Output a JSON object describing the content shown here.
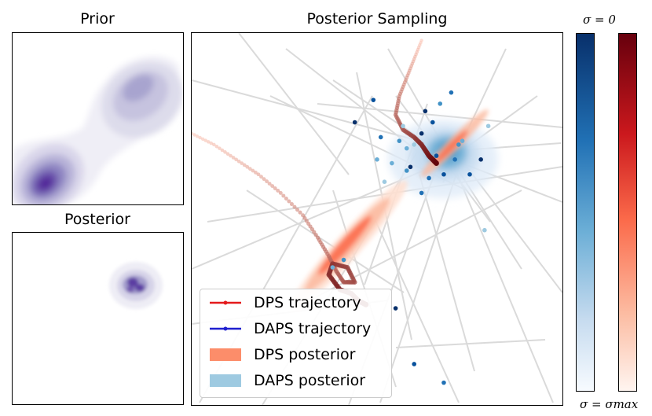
{
  "panels": {
    "prior_title": "Prior",
    "posterior_title": "Posterior",
    "main_title": "Posterior Sampling"
  },
  "colorbars": {
    "top_label": "σ = 0",
    "bottom_label": "σ = σmax",
    "blue_colors": [
      "#08306b",
      "#2171b5",
      "#6baed6",
      "#c6dbef",
      "#f7fbff"
    ],
    "red_colors": [
      "#67000d",
      "#cb181d",
      "#fb6a4a",
      "#fcbba1",
      "#fff5f0"
    ]
  },
  "legend": {
    "items": [
      {
        "label": "DPS trajectory",
        "kind": "line",
        "color": "#e41a1c"
      },
      {
        "label": "DAPS trajectory",
        "kind": "line",
        "color": "#1f1fcf"
      },
      {
        "label": "DPS posterior",
        "kind": "patch",
        "color": "#fc8d6a"
      },
      {
        "label": "DAPS posterior",
        "kind": "patch",
        "color": "#9ecae1"
      }
    ]
  },
  "chart_data": [
    {
      "type": "heatmap",
      "title": "Prior",
      "xlim": [
        0,
        1
      ],
      "ylim": [
        0,
        1
      ],
      "modes": [
        {
          "x": 0.18,
          "y": 0.12,
          "weight": 1.0
        },
        {
          "x": 0.73,
          "y": 0.72,
          "weight": 0.55
        }
      ]
    },
    {
      "type": "heatmap",
      "title": "Posterior",
      "xlim": [
        0,
        1
      ],
      "ylim": [
        0,
        1
      ],
      "modes": [
        {
          "x": 0.71,
          "y": 0.69,
          "weight": 1.0
        }
      ]
    },
    {
      "type": "scatter",
      "title": "Posterior Sampling",
      "xlim": [
        0,
        1
      ],
      "ylim": [
        0,
        1
      ],
      "dps_trajectory_1": [
        [
          0.0,
          0.73
        ],
        [
          0.06,
          0.7
        ],
        [
          0.12,
          0.66
        ],
        [
          0.18,
          0.62
        ],
        [
          0.24,
          0.57
        ],
        [
          0.3,
          0.51
        ],
        [
          0.34,
          0.45
        ],
        [
          0.37,
          0.4
        ],
        [
          0.39,
          0.36
        ],
        [
          0.41,
          0.33
        ],
        [
          0.44,
          0.33
        ],
        [
          0.42,
          0.37
        ],
        [
          0.38,
          0.38
        ],
        [
          0.37,
          0.35
        ],
        [
          0.4,
          0.31
        ],
        [
          0.43,
          0.3
        ],
        [
          0.45,
          0.28
        ],
        [
          0.47,
          0.27
        ]
      ],
      "dps_trajectory_2": [
        [
          0.62,
          0.98
        ],
        [
          0.6,
          0.93
        ],
        [
          0.58,
          0.88
        ],
        [
          0.56,
          0.83
        ],
        [
          0.55,
          0.78
        ],
        [
          0.57,
          0.74
        ],
        [
          0.6,
          0.72
        ],
        [
          0.62,
          0.7
        ],
        [
          0.64,
          0.67
        ],
        [
          0.66,
          0.65
        ]
      ],
      "daps_points": [
        [
          0.44,
          0.76
        ],
        [
          0.49,
          0.82
        ],
        [
          0.51,
          0.72
        ],
        [
          0.56,
          0.71
        ],
        [
          0.58,
          0.69
        ],
        [
          0.6,
          0.7
        ],
        [
          0.62,
          0.73
        ],
        [
          0.65,
          0.76
        ],
        [
          0.7,
          0.84
        ],
        [
          0.72,
          0.7
        ],
        [
          0.73,
          0.71
        ],
        [
          0.8,
          0.75
        ],
        [
          0.78,
          0.66
        ],
        [
          0.68,
          0.62
        ],
        [
          0.64,
          0.61
        ],
        [
          0.58,
          0.63
        ],
        [
          0.54,
          0.65
        ],
        [
          0.52,
          0.6
        ],
        [
          0.59,
          0.64
        ],
        [
          0.66,
          0.67
        ],
        [
          0.71,
          0.66
        ],
        [
          0.67,
          0.81
        ],
        [
          0.5,
          0.66
        ],
        [
          0.57,
          0.75
        ],
        [
          0.63,
          0.79
        ],
        [
          0.75,
          0.62
        ],
        [
          0.62,
          0.57
        ],
        [
          0.41,
          0.39
        ],
        [
          0.38,
          0.37
        ],
        [
          0.79,
          0.47
        ],
        [
          0.55,
          0.26
        ],
        [
          0.6,
          0.11
        ],
        [
          0.68,
          0.06
        ]
      ],
      "dps_posterior_center": [
        0.43,
        0.35
      ],
      "daps_posterior_center": [
        0.65,
        0.69
      ]
    }
  ]
}
